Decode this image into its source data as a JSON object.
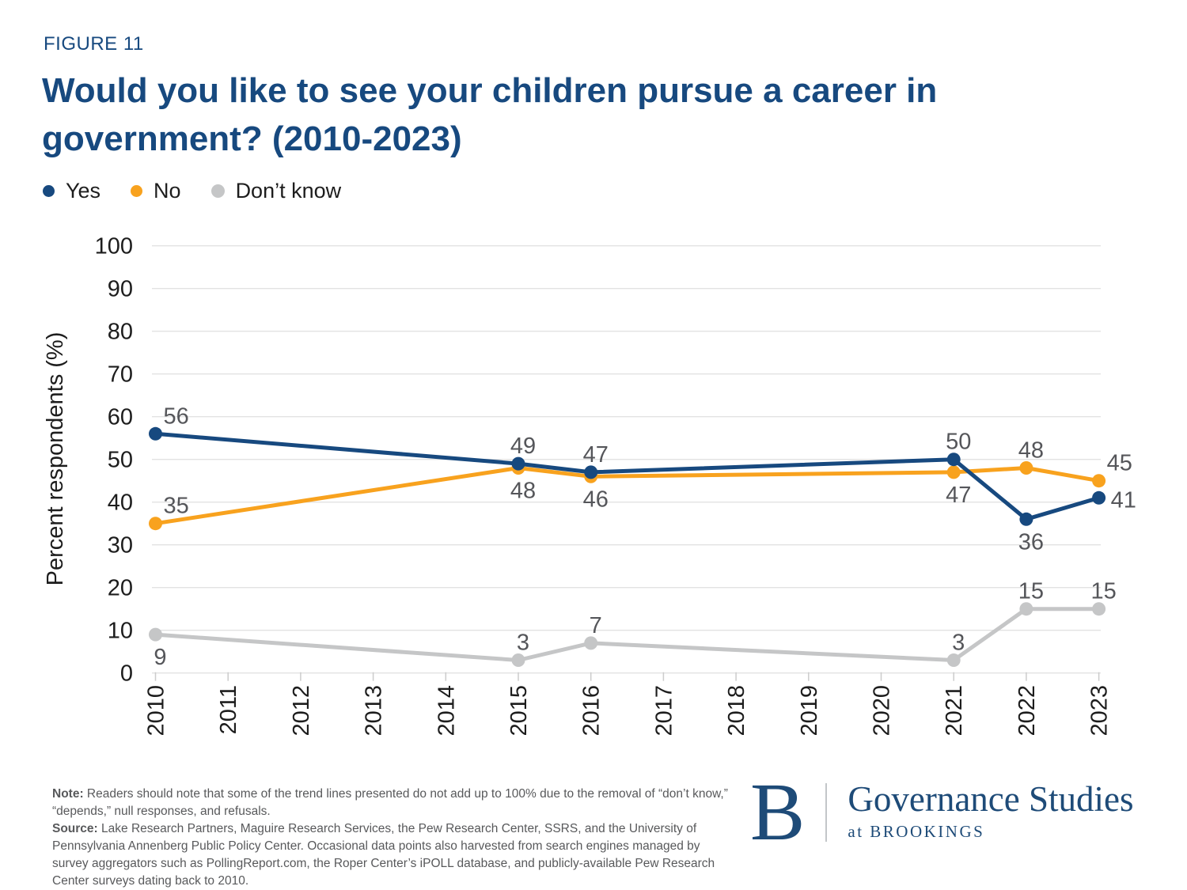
{
  "figure_label": "FIGURE 11",
  "title_lines": [
    "Would you like to see your children pursue a career in",
    "government? (2010-2023)"
  ],
  "legend": {
    "items": [
      {
        "label": "Yes",
        "color": "#17497F"
      },
      {
        "label": "No",
        "color": "#F8A21E"
      },
      {
        "label": "Don’t know",
        "color": "#C5C6C7"
      }
    ]
  },
  "chart_data": {
    "type": "line",
    "title": "Would you like to see your children pursue a career in government? (2010-2023)",
    "xlabel": "",
    "ylabel": "Percent respondents (%)",
    "ylim": [
      0,
      100
    ],
    "ytick_step": 10,
    "grid": true,
    "legend_position": "top-left",
    "x_ticks": [
      2010,
      2011,
      2012,
      2013,
      2014,
      2015,
      2016,
      2017,
      2018,
      2019,
      2020,
      2021,
      2022,
      2023
    ],
    "x": [
      2010,
      2015,
      2016,
      2021,
      2022,
      2023
    ],
    "series": [
      {
        "name": "Yes",
        "color": "#17497F",
        "values": [
          56,
          49,
          47,
          50,
          36,
          41
        ],
        "label_positions": [
          "above-right",
          "above",
          "above",
          "above",
          "below",
          "right"
        ]
      },
      {
        "name": "No",
        "color": "#F8A21E",
        "values": [
          35,
          48,
          46,
          47,
          48,
          45
        ],
        "label_positions": [
          "above-right",
          "below",
          "below",
          "below",
          "above",
          "above-right"
        ]
      },
      {
        "name": "Don’t know",
        "color": "#C5C6C7",
        "values": [
          9,
          3,
          7,
          3,
          15,
          15
        ],
        "label_positions": [
          "below",
          "above",
          "above",
          "above",
          "above",
          "above"
        ]
      }
    ]
  },
  "note": {
    "label": "Note:",
    "text": " Readers should note that some of the trend lines presented do not add up to 100% due to the removal of “don’t know,” “depends,” null responses, and refusals."
  },
  "source": {
    "label": "Source:",
    "text": " Lake Research Partners, Maguire Research Services, the Pew Research Center, SSRS, and the University of Pennsylvania Annenberg Public Policy Center. Occasional data points also harvested from search engines managed by survey aggregators such as PollingReport.com, the Roper Center’s iPOLL database, and publicly-available Pew Research Center surveys dating back to 2010."
  },
  "logo": {
    "monogram": "B",
    "title": "Governance Studies",
    "subtitle": "at BROOKINGS"
  }
}
